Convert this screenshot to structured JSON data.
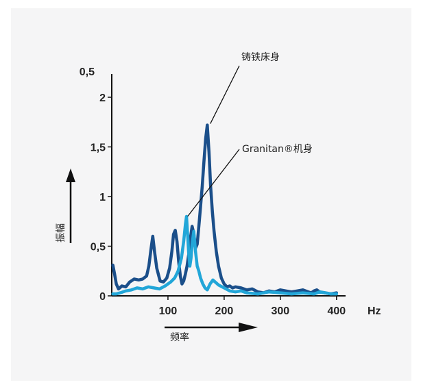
{
  "chart_data": {
    "type": "line",
    "title": "",
    "xlabel": "频率",
    "ylabel": "振幅",
    "x_unit": "Hz",
    "y_top_label": "0,5",
    "xlim": [
      0,
      410
    ],
    "ylim": [
      0,
      2.2
    ],
    "x_ticks": [
      {
        "value": 100,
        "label": "100"
      },
      {
        "value": 200,
        "label": "200"
      },
      {
        "value": 300,
        "label": "300"
      },
      {
        "value": 400,
        "label": "400"
      }
    ],
    "y_ticks": [
      {
        "value": 0,
        "label": "0"
      },
      {
        "value": 0.5,
        "label": "0,5"
      },
      {
        "value": 1,
        "label": "1"
      },
      {
        "value": 1.5,
        "label": "1,5"
      },
      {
        "value": 2,
        "label": "2"
      }
    ],
    "grid": false,
    "series": [
      {
        "name": "铸铁床身",
        "color": "#1b4f8a",
        "x": [
          2,
          5,
          8,
          12,
          18,
          25,
          32,
          40,
          48,
          55,
          62,
          66,
          70,
          73,
          76,
          80,
          86,
          92,
          98,
          103,
          107,
          110,
          113,
          116,
          119,
          122,
          125,
          128,
          131,
          134,
          137,
          140,
          143,
          146,
          149,
          152,
          155,
          158,
          161,
          164,
          167,
          170,
          173,
          176,
          179,
          182,
          186,
          190,
          195,
          200,
          205,
          210,
          215,
          220,
          230,
          240,
          250,
          260,
          270,
          280,
          290,
          300,
          310,
          320,
          330,
          340,
          350,
          355,
          360,
          365,
          370,
          380,
          390,
          400
        ],
        "y": [
          0.31,
          0.22,
          0.12,
          0.07,
          0.1,
          0.09,
          0.14,
          0.17,
          0.16,
          0.17,
          0.2,
          0.3,
          0.48,
          0.6,
          0.45,
          0.28,
          0.15,
          0.14,
          0.18,
          0.28,
          0.45,
          0.62,
          0.66,
          0.55,
          0.35,
          0.2,
          0.12,
          0.15,
          0.22,
          0.3,
          0.42,
          0.58,
          0.7,
          0.63,
          0.48,
          0.52,
          0.7,
          0.9,
          1.1,
          1.35,
          1.58,
          1.72,
          1.45,
          1.1,
          0.85,
          0.65,
          0.45,
          0.3,
          0.18,
          0.12,
          0.09,
          0.1,
          0.08,
          0.09,
          0.08,
          0.06,
          0.07,
          0.04,
          0.03,
          0.05,
          0.04,
          0.06,
          0.05,
          0.04,
          0.05,
          0.06,
          0.04,
          0.03,
          0.05,
          0.06,
          0.04,
          0.03,
          0.02,
          0.03
        ]
      },
      {
        "name": "Granitan®机身",
        "color": "#22a6d8",
        "x": [
          2,
          8,
          15,
          25,
          35,
          45,
          55,
          65,
          75,
          85,
          95,
          105,
          112,
          118,
          124,
          128,
          131,
          133,
          135,
          137,
          139,
          141,
          143,
          146,
          149,
          152,
          155,
          158,
          162,
          166,
          170,
          175,
          180,
          190,
          200,
          210,
          220,
          230,
          240,
          260,
          280,
          300,
          320,
          340,
          360,
          370,
          380,
          390,
          400
        ],
        "y": [
          0.02,
          0.02,
          0.03,
          0.05,
          0.06,
          0.08,
          0.07,
          0.09,
          0.08,
          0.07,
          0.1,
          0.14,
          0.18,
          0.25,
          0.38,
          0.55,
          0.72,
          0.8,
          0.62,
          0.42,
          0.3,
          0.38,
          0.52,
          0.65,
          0.45,
          0.3,
          0.25,
          0.18,
          0.12,
          0.08,
          0.06,
          0.12,
          0.16,
          0.11,
          0.08,
          0.05,
          0.04,
          0.05,
          0.03,
          0.02,
          0.04,
          0.03,
          0.02,
          0.03,
          0.02,
          0.04,
          0.03,
          0.02,
          0.02
        ]
      }
    ],
    "annotations": [
      {
        "text": "铸铁床身",
        "points_to_series": 0,
        "x": 173,
        "y": 1.72
      },
      {
        "text": "Granitan®机身",
        "points_to_series": 1,
        "x": 135,
        "y": 0.8
      }
    ]
  }
}
